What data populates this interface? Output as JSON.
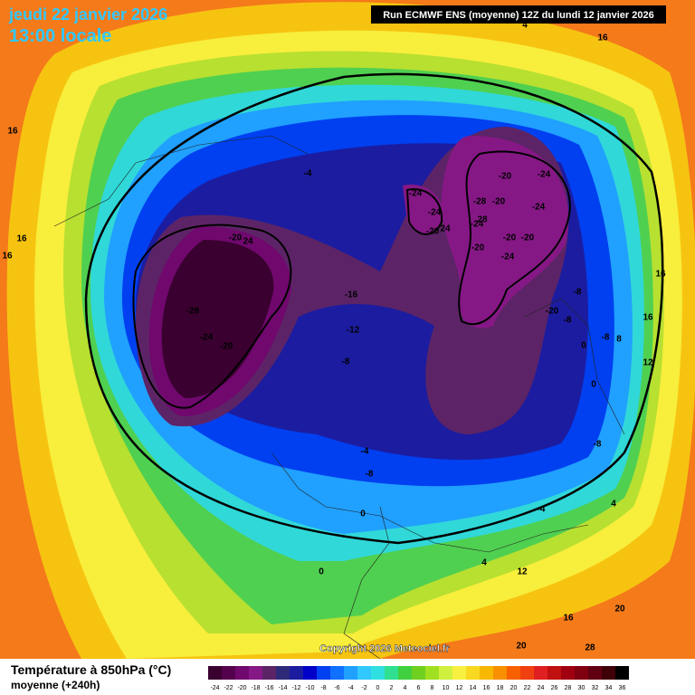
{
  "header": {
    "date": "jeudi 22 janvier 2026",
    "time": "13:00 locale",
    "run": "Run ECMWF ENS (moyenne) 12Z du lundi 12 janvier 2026"
  },
  "copyright": "Copyright 2026 Meteociel.fr",
  "legend": {
    "title": "Température à 850hPa (°C)",
    "subtitle": "moyenne  (+240h)",
    "labels": [
      -24,
      -22,
      -20,
      -18,
      -16,
      -14,
      -12,
      -10,
      -8,
      -6,
      -4,
      -2,
      0,
      2,
      4,
      6,
      8,
      10,
      12,
      14,
      16,
      18,
      20,
      22,
      24,
      26,
      28,
      30,
      32,
      34,
      36
    ],
    "colors": [
      "#3a0030",
      "#55004c",
      "#70086e",
      "#861886",
      "#5c2466",
      "#2e2a7a",
      "#1c1ca0",
      "#0000c8",
      "#0040f0",
      "#1070ff",
      "#20a0ff",
      "#30c8ff",
      "#30e0e0",
      "#30e090",
      "#40d040",
      "#70d020",
      "#a0e020",
      "#d0f040",
      "#f8f040",
      "#f8d820",
      "#f8b800",
      "#f89000",
      "#f86000",
      "#f04010",
      "#e02020",
      "#c01010",
      "#a00010",
      "#800010",
      "#600010",
      "#400008",
      "#000000"
    ]
  },
  "map": {
    "labels": [
      "-20",
      "24",
      "-28",
      "-24",
      "-20",
      "-16",
      "-12",
      "-8",
      "-4",
      "-24",
      "-24",
      "-20",
      "24",
      "-28",
      "-20",
      "28",
      "-24",
      "-20",
      "-24",
      "-24",
      "-20",
      "-20",
      "-20",
      "-24",
      "-8",
      "-20",
      "-8",
      "-8",
      "0",
      "8",
      "0",
      "-8",
      "-4",
      "-8",
      "0",
      "0",
      "-4",
      "4",
      "4",
      "12",
      "16",
      "20",
      "20",
      "28",
      "16",
      "16",
      "16",
      "16",
      "16",
      "16",
      "12",
      "4"
    ]
  }
}
